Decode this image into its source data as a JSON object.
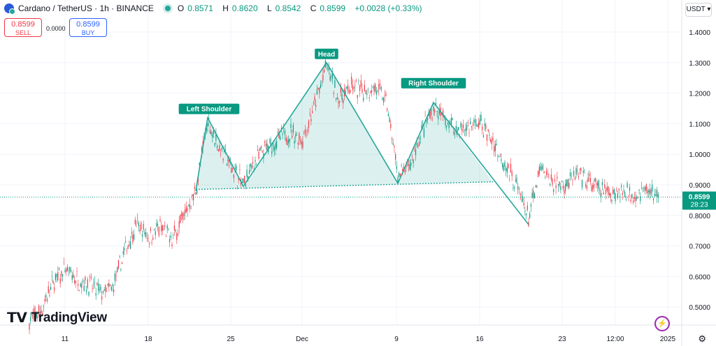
{
  "header": {
    "symbol_title": "Cardano / TetherUS · 1h · BINANCE",
    "ohlc": [
      {
        "k": "O",
        "v": "0.8571"
      },
      {
        "k": "H",
        "v": "0.8620"
      },
      {
        "k": "L",
        "v": "0.8542"
      },
      {
        "k": "C",
        "v": "0.8599"
      }
    ],
    "change": "+0.0028 (+0.33%)"
  },
  "trade": {
    "sell_price": "0.8599",
    "sell_label": "SELL",
    "buy_price": "0.8599",
    "buy_label": "BUY",
    "spread": "0.0000"
  },
  "currency": "USDT",
  "brand": "TradingView",
  "colors": {
    "up": "#089981",
    "down": "#f23645",
    "pattern": "#26a69a",
    "fill": "rgba(38,166,154,0.16)"
  },
  "chart_data": {
    "type": "candlestick",
    "ylim": [
      0.43,
      1.44
    ],
    "y_ticks": [
      "1.4000",
      "1.3000",
      "1.2000",
      "1.1000",
      "1.0000",
      "0.9000",
      "0.8000",
      "0.7000",
      "0.6000",
      "0.5000"
    ],
    "x_ticks": [
      "11",
      "18",
      "25",
      "Dec",
      "9",
      "16",
      "23",
      "12:00",
      "2025"
    ],
    "last_price": "0.8599",
    "countdown": "28:23",
    "pattern": {
      "name": "Head and Shoulders",
      "labels": [
        "Left Shoulder",
        "Head",
        "Right Shoulder"
      ],
      "path": [
        {
          "x": "2024-11-22",
          "y": 0.88
        },
        {
          "x": "2024-11-23",
          "y": 1.12
        },
        {
          "x": "2024-11-26",
          "y": 0.895
        },
        {
          "x": "2024-12-03",
          "y": 1.3
        },
        {
          "x": "2024-12-09",
          "y": 0.905
        },
        {
          "x": "2024-12-12",
          "y": 1.17
        },
        {
          "x": "2024-12-20",
          "y": 0.77
        }
      ],
      "neckline": [
        {
          "x": "2024-11-22",
          "y": 0.885
        },
        {
          "x": "2024-12-17",
          "y": 0.91
        }
      ]
    },
    "price_path": [
      {
        "x": "2024-11-08",
        "y": 0.455
      },
      {
        "x": "2024-11-09",
        "y": 0.49
      },
      {
        "x": "2024-11-10",
        "y": 0.58
      },
      {
        "x": "2024-11-11",
        "y": 0.62
      },
      {
        "x": "2024-11-12",
        "y": 0.59
      },
      {
        "x": "2024-11-13",
        "y": 0.575
      },
      {
        "x": "2024-11-14",
        "y": 0.545
      },
      {
        "x": "2024-11-15",
        "y": 0.56
      },
      {
        "x": "2024-11-16",
        "y": 0.68
      },
      {
        "x": "2024-11-17",
        "y": 0.77
      },
      {
        "x": "2024-11-18",
        "y": 0.73
      },
      {
        "x": "2024-11-19",
        "y": 0.76
      },
      {
        "x": "2024-11-20",
        "y": 0.72
      },
      {
        "x": "2024-11-21",
        "y": 0.8
      },
      {
        "x": "2024-11-22",
        "y": 0.88
      },
      {
        "x": "2024-11-23",
        "y": 1.11
      },
      {
        "x": "2024-11-24",
        "y": 1.02
      },
      {
        "x": "2024-11-25",
        "y": 0.96
      },
      {
        "x": "2024-11-26",
        "y": 0.9
      },
      {
        "x": "2024-11-27",
        "y": 0.98
      },
      {
        "x": "2024-11-28",
        "y": 1.02
      },
      {
        "x": "2024-11-29",
        "y": 1.05
      },
      {
        "x": "2024-11-30",
        "y": 1.07
      },
      {
        "x": "2024-12-01",
        "y": 1.05
      },
      {
        "x": "2024-12-02",
        "y": 1.16
      },
      {
        "x": "2024-12-03",
        "y": 1.29
      },
      {
        "x": "2024-12-04",
        "y": 1.18
      },
      {
        "x": "2024-12-05",
        "y": 1.22
      },
      {
        "x": "2024-12-06",
        "y": 1.21
      },
      {
        "x": "2024-12-07",
        "y": 1.22
      },
      {
        "x": "2024-12-08",
        "y": 1.18
      },
      {
        "x": "2024-12-09",
        "y": 0.93
      },
      {
        "x": "2024-12-10",
        "y": 0.96
      },
      {
        "x": "2024-12-11",
        "y": 1.07
      },
      {
        "x": "2024-12-12",
        "y": 1.15
      },
      {
        "x": "2024-12-13",
        "y": 1.11
      },
      {
        "x": "2024-12-14",
        "y": 1.08
      },
      {
        "x": "2024-12-15",
        "y": 1.09
      },
      {
        "x": "2024-12-16",
        "y": 1.1
      },
      {
        "x": "2024-12-17",
        "y": 1.04
      },
      {
        "x": "2024-12-18",
        "y": 0.97
      },
      {
        "x": "2024-12-19",
        "y": 0.9
      },
      {
        "x": "2024-12-20",
        "y": 0.79
      },
      {
        "x": "2024-12-21",
        "y": 0.95
      },
      {
        "x": "2024-12-22",
        "y": 0.91
      },
      {
        "x": "2024-12-23",
        "y": 0.9
      },
      {
        "x": "2024-12-24",
        "y": 0.93
      },
      {
        "x": "2024-12-25",
        "y": 0.91
      },
      {
        "x": "2024-12-26",
        "y": 0.88
      },
      {
        "x": "2024-12-27",
        "y": 0.875
      },
      {
        "x": "2024-12-28",
        "y": 0.88
      },
      {
        "x": "2024-12-29",
        "y": 0.87
      },
      {
        "x": "2024-12-30",
        "y": 0.885
      },
      {
        "x": "2024-12-31",
        "y": 0.86
      }
    ]
  }
}
